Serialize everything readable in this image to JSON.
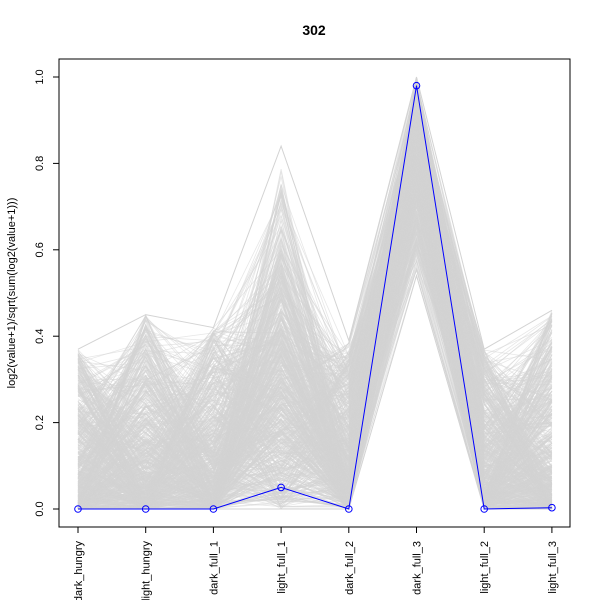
{
  "chart_data": {
    "type": "line",
    "title": "302",
    "xlabel": "",
    "ylabel": "log2(value+1)/sqrt(sum(log2(value+1)))",
    "categories": [
      "dark_hungry",
      "light_hungry",
      "dark_full_1",
      "light_full_1",
      "dark_full_2",
      "dark_full_3",
      "light_full_2",
      "light_full_3"
    ],
    "ylim": [
      0.0,
      1.0
    ],
    "yticks": [
      "0.0",
      "0.2",
      "0.4",
      "0.6",
      "0.8",
      "1.0"
    ],
    "grid": false,
    "series": [
      {
        "values": [
          0.0,
          0.0,
          0.0,
          0.05,
          0.0,
          0.98,
          0.0,
          0.003
        ],
        "color": "#0000ff",
        "marker": "open-circle"
      }
    ],
    "background": {
      "description_color": "#d3d3d3",
      "low": [
        0.0,
        0.0,
        0.0,
        0.0,
        0.0,
        0.54,
        0.0,
        0.0
      ],
      "high": [
        0.37,
        0.45,
        0.42,
        0.84,
        0.39,
        1.0,
        0.37,
        0.46
      ],
      "typical": [
        0.05,
        0.1,
        0.08,
        0.3,
        0.05,
        0.72,
        0.04,
        0.12
      ]
    }
  }
}
